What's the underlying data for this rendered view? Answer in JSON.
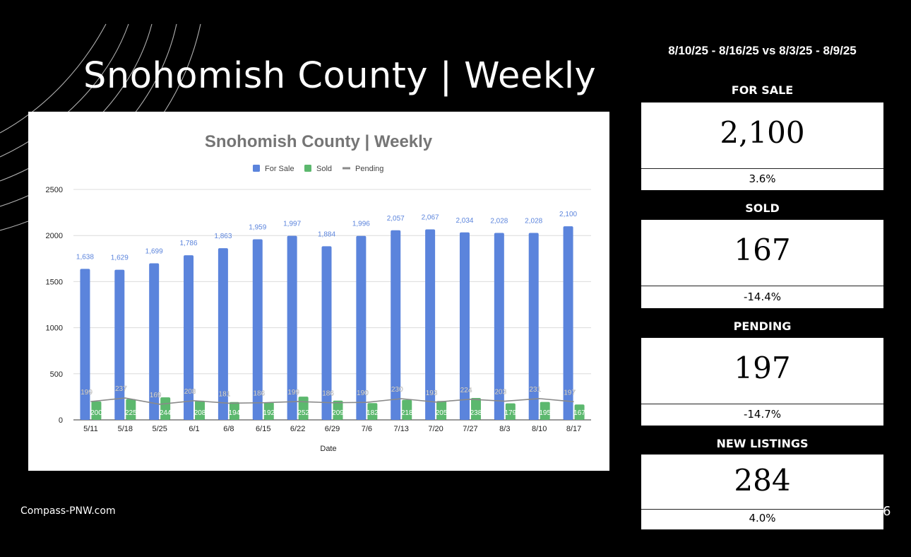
{
  "title": "Snohomish County | Weekly",
  "footer": "Compass-PNW.com",
  "page_number": "6",
  "comparison": "8/10/25 - 8/16/25 vs 8/3/25 - 8/9/25",
  "stats": [
    {
      "label": "FOR SALE",
      "value": "2,100",
      "change": "3.6%"
    },
    {
      "label": "SOLD",
      "value": "167",
      "change": "-14.4%"
    },
    {
      "label": "PENDING",
      "value": "197",
      "change": "-14.7%"
    },
    {
      "label": "NEW LISTINGS",
      "value": "284",
      "change": "4.0%"
    }
  ],
  "colors": {
    "for_sale": "#5b84dc",
    "sold": "#5cb86e",
    "pending": "#8a8a8a"
  },
  "chart_data": {
    "type": "bar",
    "title": "Snohomish County | Weekly",
    "xlabel": "Date",
    "ylabel": "",
    "ylim": [
      0,
      2500
    ],
    "yticks": [
      "0",
      "500",
      "1000",
      "1500",
      "2000",
      "2500"
    ],
    "grid": true,
    "legend_position": "top",
    "categories": [
      "5/11",
      "5/18",
      "5/25",
      "6/1",
      "6/8",
      "6/15",
      "6/22",
      "6/29",
      "7/6",
      "7/13",
      "7/20",
      "7/27",
      "8/3",
      "8/10",
      "8/17"
    ],
    "series": [
      {
        "name": "For Sale",
        "type": "bar",
        "values": [
          1638,
          1629,
          1699,
          1786,
          1863,
          1959,
          1997,
          1884,
          1996,
          2057,
          2067,
          2034,
          2028,
          2028,
          2100
        ],
        "labels": [
          "1,638",
          "1,629",
          "1,699",
          "1,786",
          "1,863",
          "1,959",
          "1,997",
          "1,884",
          "1,996",
          "2,057",
          "2,067",
          "2,034",
          "2,028",
          "2,028",
          "2,100"
        ]
      },
      {
        "name": "Sold",
        "type": "bar",
        "values": [
          200,
          225,
          244,
          208,
          194,
          192,
          252,
          209,
          182,
          218,
          205,
          238,
          179,
          195,
          167
        ],
        "labels": [
          "200",
          "225",
          "244",
          "208",
          "194",
          "192",
          "252",
          "209",
          "182",
          "218",
          "205",
          "238",
          "179",
          "195",
          "167"
        ]
      },
      {
        "name": "Pending",
        "type": "line",
        "values": [
          199,
          237,
          169,
          208,
          181,
          186,
          199,
          186,
          190,
          230,
          193,
          224,
          203,
          231,
          197
        ],
        "labels": [
          "199",
          "237",
          "169",
          "208",
          "181",
          "186",
          "199",
          "186",
          "190",
          "230",
          "193",
          "224",
          "203",
          "231",
          "197"
        ]
      }
    ]
  }
}
